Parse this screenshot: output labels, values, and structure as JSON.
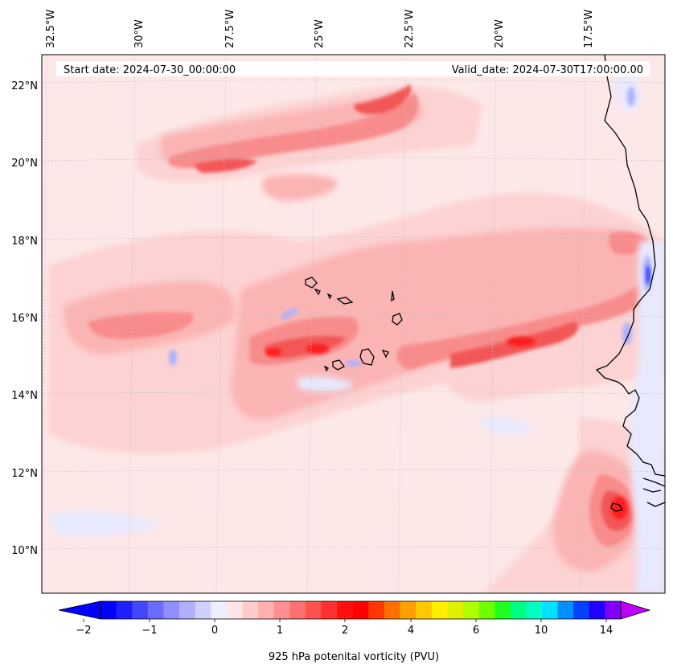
{
  "map": {
    "start_label": "Start date: 2024-07-30_00:00:00",
    "valid_label": "Valid_date: 2024-07-30T17:00:00.00",
    "lon_labels": [
      "32.5°W",
      "30°W",
      "27.5°W",
      "25°W",
      "22.5°W",
      "20°W",
      "17.5°W"
    ],
    "lat_labels": [
      "22°N",
      "20°N",
      "18°N",
      "16°N",
      "14°N",
      "12°N",
      "10°N"
    ],
    "field_colors": {
      "background": "#fde8e8",
      "light_pink": "#fcd2d2",
      "pink": "#fbb4b4",
      "mid_red": "#f88c8c",
      "red": "#f25656",
      "deep_red": "#ff1a1a",
      "light_blue": "#e7e9fd",
      "blue": "#aeb2fb",
      "deep_blue": "#4040ff"
    },
    "coastline_color": "#000000",
    "gridline_color": "#bfbfbf"
  },
  "colorbar": {
    "label": "925 hPa potenital vorticity (PVU)",
    "tick_labels": [
      "−2",
      "−1",
      "0",
      "1",
      "2",
      "4",
      "6",
      "10",
      "14"
    ],
    "colors": [
      "#0000ff",
      "#2020ff",
      "#4545ff",
      "#6b6bff",
      "#8f8fff",
      "#b0b0ff",
      "#d0d0ff",
      "#eeeeff",
      "#ffe6e6",
      "#ffcccc",
      "#ffb0b0",
      "#ff9090",
      "#ff7070",
      "#ff5050",
      "#ff3030",
      "#ff1010",
      "#ff0000",
      "#ff3800",
      "#ff7000",
      "#ffa000",
      "#ffc800",
      "#ffee00",
      "#e0f000",
      "#b0ff00",
      "#70ff00",
      "#20ff20",
      "#00ff80",
      "#00ffc0",
      "#00e0ff",
      "#0090ff",
      "#0040ff",
      "#2000ff",
      "#8000ff"
    ],
    "extend_min_color": "#0000ff",
    "extend_max_color": "#c000ff"
  }
}
